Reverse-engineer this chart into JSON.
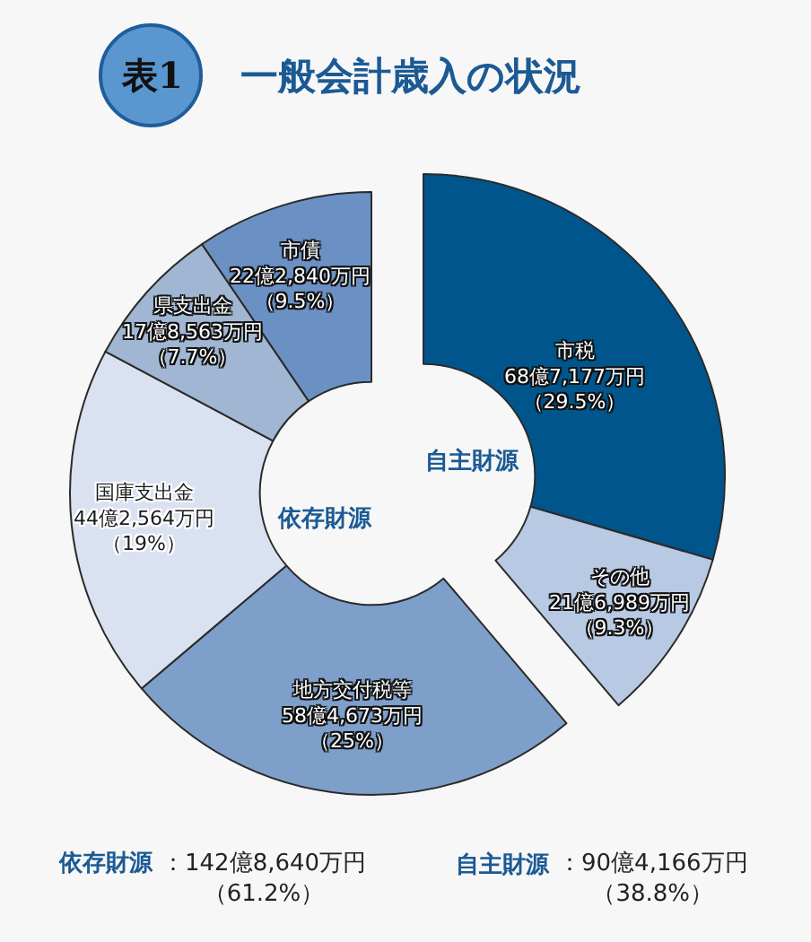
{
  "chart_data": {
    "type": "donut",
    "title": "一般会計歳入の状況",
    "categories": [
      "市税",
      "その他",
      "地方交付税等",
      "国庫支出金",
      "県支出金",
      "市債"
    ],
    "values": [
      29.5,
      9.3,
      25,
      19,
      7.7,
      9.5
    ],
    "colors": [
      "#00568c",
      "#b8c9e3",
      "#7d9fc9",
      "#dae2f1",
      "#a0b6d2",
      "#6b91c4"
    ],
    "value_labels": [
      "68億7,177万円（29.5%）",
      "21億6,989万円（9.3%）",
      "58億4,673万円（25%）",
      "44億2,564万円（19%）",
      "17億8,563万円（7.7%）",
      "22億2,840万円（9.5%）"
    ],
    "annotations": [
      "表1",
      "自主財源",
      "依存財源",
      "依存財源",
      "：142億8,640万円（61.2%）",
      "自主財源",
      "：90億4,166万円（38.8%）"
    ]
  }
}
